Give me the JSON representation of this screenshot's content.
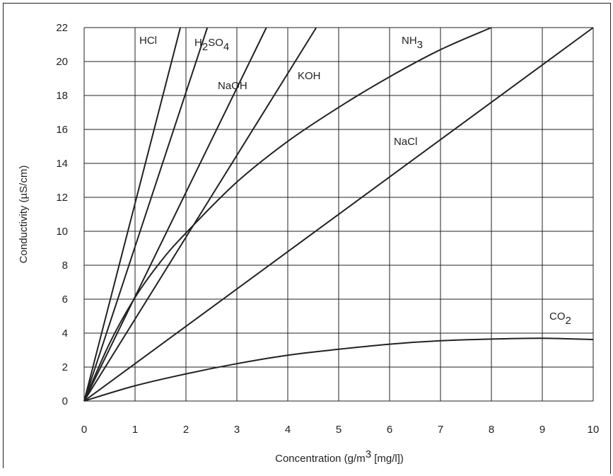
{
  "chart_data": {
    "type": "line",
    "title": "",
    "xlabel": "Concentration (g/m3 [mg/l])",
    "xlabel_parts": {
      "before": "Concentration (g/m",
      "sup": "3",
      "after": " [mg/l])"
    },
    "ylabel": "Conductivity (µS/cm)",
    "xlim": [
      0,
      10
    ],
    "ylim": [
      0,
      22
    ],
    "x_ticks": [
      "0",
      "1",
      "2",
      "3",
      "4",
      "5",
      "6",
      "7",
      "8",
      "9",
      "10"
    ],
    "y_ticks": [
      "0",
      "2",
      "4",
      "6",
      "8",
      "10",
      "12",
      "14",
      "16",
      "18",
      "20",
      "22"
    ],
    "grid": true,
    "series": [
      {
        "name": "HCl",
        "label_parts": [
          {
            "t": "HCl"
          }
        ],
        "x": [
          0,
          1.89
        ],
        "y": [
          0,
          22
        ]
      },
      {
        "name": "H2SO4",
        "label_parts": [
          {
            "t": "H"
          },
          {
            "t": "2",
            "sub": true
          },
          {
            "t": "SO"
          },
          {
            "t": "4",
            "sub": true
          }
        ],
        "x": [
          0,
          2.42
        ],
        "y": [
          0,
          22
        ]
      },
      {
        "name": "NaOH",
        "label_parts": [
          {
            "t": "NaOH"
          }
        ],
        "x": [
          0,
          3.58
        ],
        "y": [
          0,
          22
        ]
      },
      {
        "name": "KOH",
        "label_parts": [
          {
            "t": "KOH"
          }
        ],
        "x": [
          0,
          4.56
        ],
        "y": [
          0,
          22
        ]
      },
      {
        "name": "NH3",
        "label_parts": [
          {
            "t": "NH"
          },
          {
            "t": "3",
            "sub": true
          }
        ],
        "x": [
          0,
          0.5,
          1,
          1.5,
          2,
          3,
          4,
          5,
          6,
          7,
          8
        ],
        "y": [
          0,
          3.4,
          6.1,
          8.2,
          9.9,
          12.9,
          15.3,
          17.3,
          19.1,
          20.7,
          22.0
        ]
      },
      {
        "name": "NaCl",
        "label_parts": [
          {
            "t": "NaCl"
          }
        ],
        "x": [
          0,
          10
        ],
        "y": [
          0,
          22
        ]
      },
      {
        "name": "CO2",
        "label_parts": [
          {
            "t": "CO"
          },
          {
            "t": "2",
            "sub": true
          }
        ],
        "x": [
          0,
          1,
          2,
          3,
          4,
          5,
          6,
          7,
          8,
          9,
          10
        ],
        "y": [
          0,
          0.9,
          1.6,
          2.2,
          2.7,
          3.05,
          3.35,
          3.55,
          3.65,
          3.7,
          3.62
        ]
      }
    ]
  }
}
